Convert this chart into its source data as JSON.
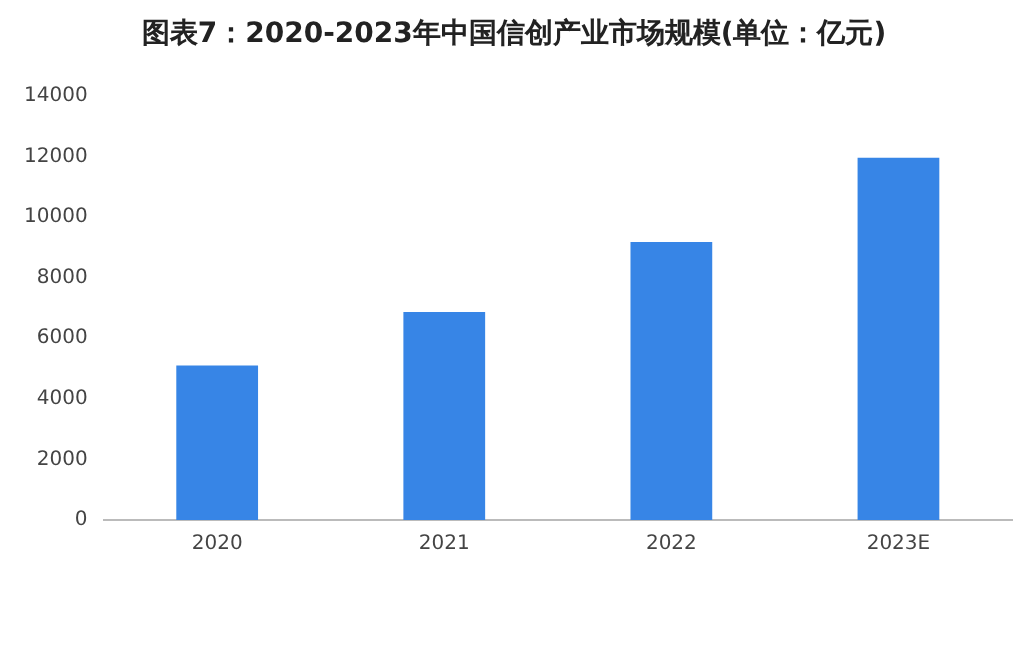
{
  "chart_data": {
    "type": "bar",
    "title": "图表7：2020-2023年中国信创产业市场规模(单位：亿元)",
    "categories": [
      "2020",
      "2021",
      "2022",
      "2023E"
    ],
    "values": [
      5100,
      6870,
      9180,
      11960
    ],
    "color": "#3785e6",
    "ylim": [
      0,
      14000
    ],
    "yticks": [
      0,
      2000,
      4000,
      6000,
      8000,
      10000,
      12000,
      14000
    ],
    "grid": false,
    "legend": false
  }
}
